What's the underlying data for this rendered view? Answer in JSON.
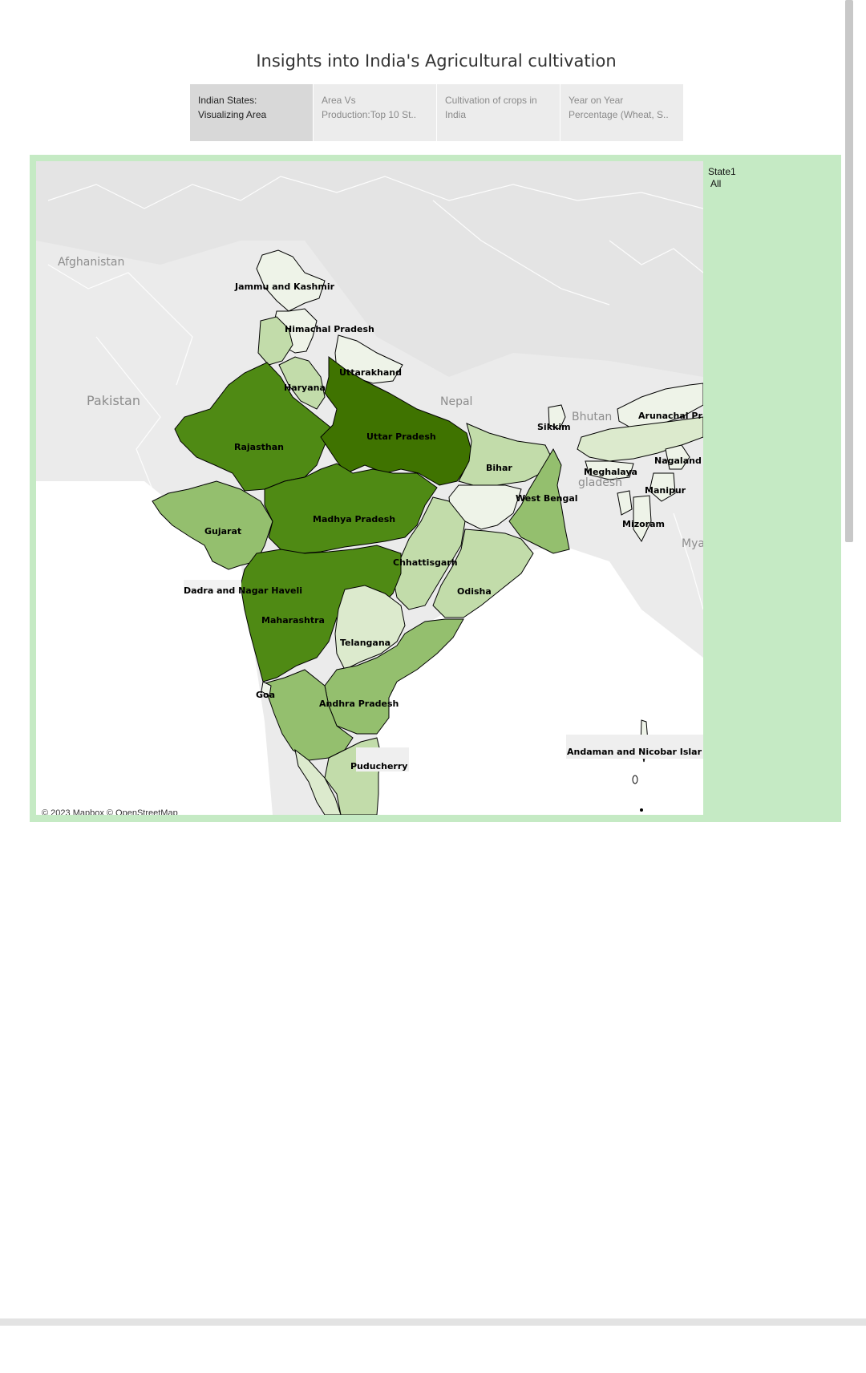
{
  "title": "Insights into India's Agricultural cultivation",
  "tabs": [
    {
      "line1": "Indian States:",
      "line2": "Visualizing Area",
      "active": true
    },
    {
      "line1": "Area Vs",
      "line2": "Production:Top 10 St..",
      "active": false
    },
    {
      "line1": "Cultivation of crops in",
      "line2": "India",
      "active": false
    },
    {
      "line1": "Year on Year",
      "line2": "Percentage (Wheat, S..",
      "active": false
    }
  ],
  "filter": {
    "label": "State1",
    "value": "All"
  },
  "map": {
    "attribution": "© 2023 Mapbox © OpenStreetMap",
    "countries": [
      "Afghanistan",
      "Pakistan",
      "Nepal",
      "Bhutan",
      "gladesh",
      "Mya"
    ],
    "states": {
      "jammu_kashmir": "Jammu and Kashmir",
      "himachal": "Himachal Pradesh",
      "uttarakhand": "Uttarakhand",
      "haryana": "Haryana",
      "rajasthan": "Rajasthan",
      "uttar_pradesh": "Uttar Pradesh",
      "bihar": "Bihar",
      "sikkim": "Sikkim",
      "arunachal": "Arunachal Pr",
      "nagaland": "Nagaland",
      "meghalaya": "Meghalaya",
      "manipur": "Manipur",
      "mizoram": "Mizoram",
      "west_bengal": "West Bengal",
      "gujarat": "Gujarat",
      "madhya_pradesh": "Madhya Pradesh",
      "chhattisgarh": "Chhattisgarh",
      "odisha": "Odisha",
      "dadra": "Dadra and Nagar Haveli",
      "maharashtra": "Maharashtra",
      "telangana": "Telangana",
      "goa": "Goa",
      "andhra": "Andhra Pradesh",
      "puducherry": "Puducherry",
      "andaman": "Andaman and Nicobar Islar"
    },
    "colors": {
      "darkest": "#3f7300",
      "dark": "#4f8a14",
      "mid": "#94bf6e",
      "light": "#c2dcaa",
      "lighter": "#dceacd",
      "lightest": "#eef3e8",
      "panel": "#c5eac4"
    }
  }
}
